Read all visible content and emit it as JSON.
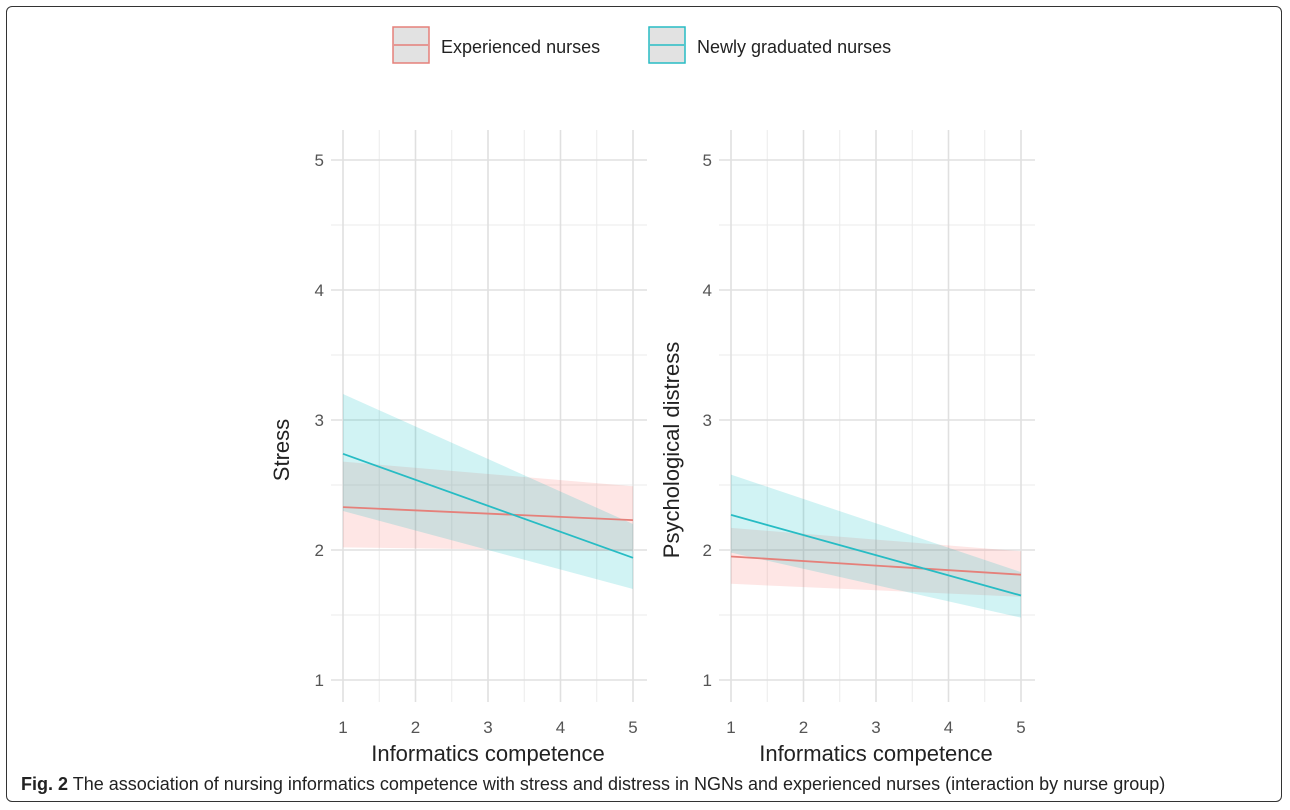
{
  "legend": {
    "position": "top",
    "entries": [
      {
        "label": "Experienced nurses",
        "color": "#E5807A"
      },
      {
        "label": "Newly graduated nurses",
        "color": "#27BCC4"
      }
    ]
  },
  "caption": {
    "label": "Fig. 2",
    "text": "The association of nursing informatics competence with stress and distress in NGNs and experienced nurses (interaction by nurse group)"
  },
  "chart_data": [
    {
      "type": "line",
      "xlabel": "Informatics competence",
      "ylabel": "Stress",
      "xlim": [
        1,
        5
      ],
      "ylim": [
        1,
        5
      ],
      "xticks": [
        1,
        2,
        3,
        4,
        5
      ],
      "yticks": [
        1,
        2,
        3,
        4,
        5
      ],
      "grid": true,
      "x": [
        1,
        5
      ],
      "series": [
        {
          "name": "Experienced nurses",
          "color": "#E5807A",
          "band_color": "#F8766D",
          "y": [
            2.33,
            2.23
          ],
          "lower": [
            2.02,
            1.99
          ],
          "upper": [
            2.68,
            2.49
          ]
        },
        {
          "name": "Newly graduated nurses",
          "color": "#27BCC4",
          "band_color": "#00BFC4",
          "y": [
            2.74,
            1.94
          ],
          "lower": [
            2.3,
            1.7
          ],
          "upper": [
            3.2,
            2.2
          ]
        }
      ]
    },
    {
      "type": "line",
      "xlabel": "Informatics competence",
      "ylabel": "Psychological distress",
      "xlim": [
        1,
        5
      ],
      "ylim": [
        1,
        5
      ],
      "xticks": [
        1,
        2,
        3,
        4,
        5
      ],
      "yticks": [
        1,
        2,
        3,
        4,
        5
      ],
      "grid": true,
      "x": [
        1,
        5
      ],
      "series": [
        {
          "name": "Experienced nurses",
          "color": "#E5807A",
          "band_color": "#F8766D",
          "y": [
            1.95,
            1.81
          ],
          "lower": [
            1.74,
            1.64
          ],
          "upper": [
            2.17,
            1.99
          ]
        },
        {
          "name": "Newly graduated nurses",
          "color": "#27BCC4",
          "band_color": "#00BFC4",
          "y": [
            2.27,
            1.65
          ],
          "lower": [
            1.98,
            1.48
          ],
          "upper": [
            2.58,
            1.83
          ]
        }
      ]
    }
  ]
}
